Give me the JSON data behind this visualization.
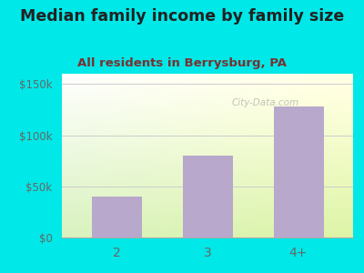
{
  "title": "Median family income by family size",
  "subtitle": "All residents in Berrysburg, PA",
  "categories": [
    "2",
    "3",
    "4+"
  ],
  "values": [
    40000,
    80000,
    128000
  ],
  "bar_color": "#b8a8cc",
  "ylim": [
    0,
    160000
  ],
  "yticks": [
    0,
    50000,
    100000,
    150000
  ],
  "ytick_labels": [
    "$0",
    "$50k",
    "$100k",
    "$150k"
  ],
  "bg_color": "#00e8e8",
  "plot_bg_top_left": "#e8f5e4",
  "plot_bg_top_right": "#f8fdf8",
  "plot_bg_bottom": "#c8e8c0",
  "title_color": "#222222",
  "subtitle_color": "#7a3030",
  "title_fontsize": 12.5,
  "subtitle_fontsize": 9.5,
  "tick_color": "#666666",
  "grid_color": "#cccccc",
  "watermark": "City-Data.com"
}
